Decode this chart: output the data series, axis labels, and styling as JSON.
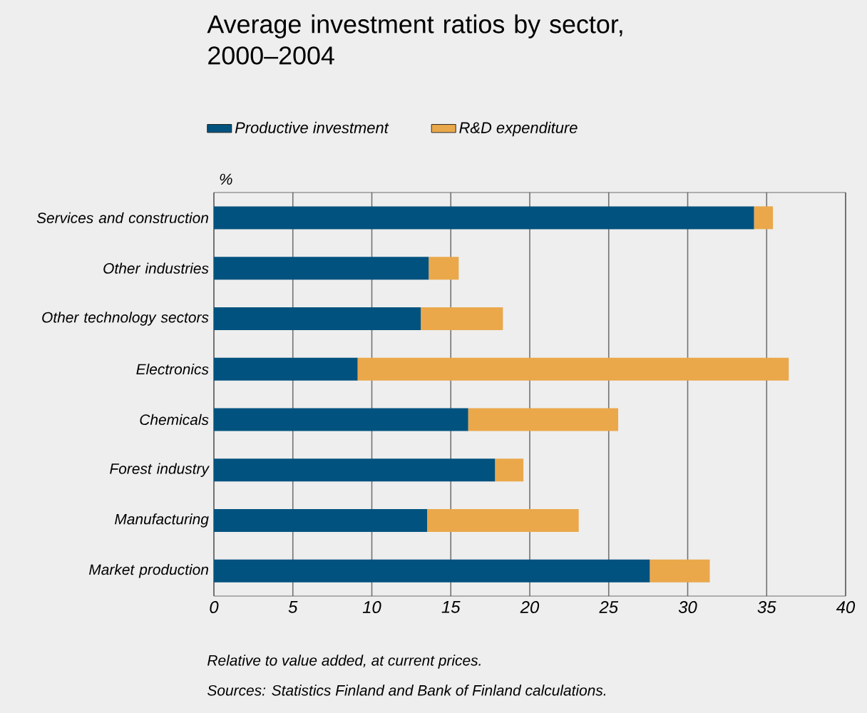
{
  "chart_data": {
    "type": "bar",
    "orientation": "horizontal",
    "stacked": true,
    "title": "Average investment ratios by sector, 2000–2004",
    "xlabel": "%",
    "categories": [
      "Services and construction",
      "Other industries",
      "Other technology sectors",
      "Electronics",
      "Chemicals",
      "Forest industry",
      "Manufacturing",
      "Market production"
    ],
    "series": [
      {
        "name": "Productive investment",
        "color": "#02527f",
        "values": [
          34.2,
          13.6,
          13.1,
          9.1,
          16.1,
          17.8,
          13.5,
          27.6
        ]
      },
      {
        "name": "R&D expenditure",
        "color": "#eaa84b",
        "values": [
          1.2,
          1.9,
          5.2,
          27.3,
          9.5,
          1.8,
          9.6,
          3.8
        ]
      }
    ],
    "xlim": [
      0,
      40
    ],
    "xticks": [
      0,
      5,
      10,
      15,
      20,
      25,
      30,
      35,
      40
    ],
    "grid": "x",
    "legend": "top",
    "annotations": [
      "Relative to value added, at current prices.",
      "Sources: Statistics Finland and Bank of Finland calculations."
    ]
  }
}
